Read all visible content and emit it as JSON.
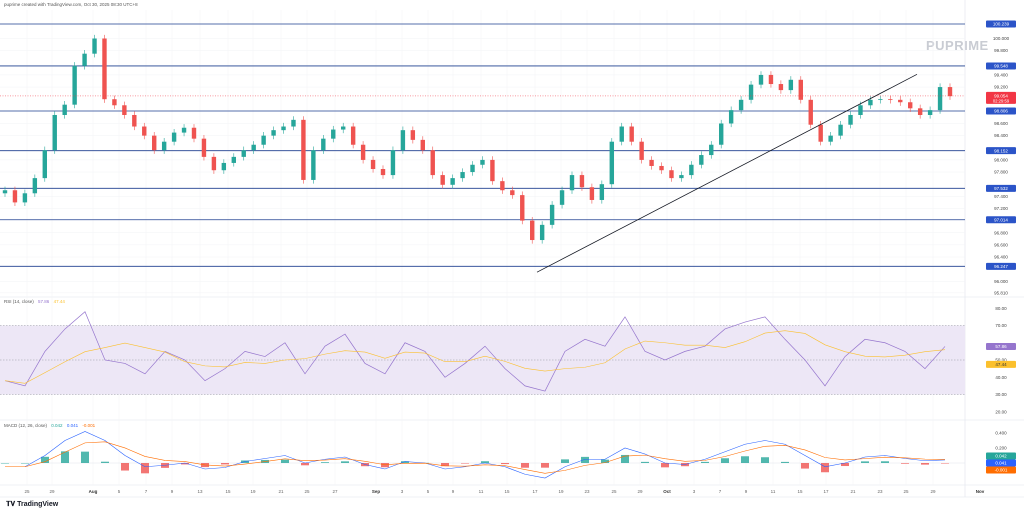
{
  "header": {
    "caption": "puprime created with TradingView.com, Oct 30, 2025 08:30 UTC+8"
  },
  "watermark": "PUPRIME",
  "footer": {
    "brand": "TradingView",
    "brand_icon": "tradingview-logo-icon"
  },
  "colors": {
    "up": "#26a69a",
    "down": "#ef5350",
    "level_line": "#1e3f8f",
    "level_badge": "#2b54c8",
    "rsi": "#9575cd",
    "rsi_ma": "#fbc02d",
    "rsi_band": "#ede7f6",
    "price_badge": "#f23645",
    "macd": "#2962ff",
    "signal": "#ff6d00"
  },
  "chart_data": [
    {
      "type": "candlestick",
      "title": "",
      "price_axis_labels": [
        "100.000",
        "99.800",
        "99.400",
        "99.200",
        "98.600",
        "98.400",
        "98.000",
        "97.800",
        "97.400",
        "97.200",
        "96.800",
        "96.600",
        "96.400",
        "96.000",
        "95.810"
      ],
      "horizontal_levels": [
        "100.239",
        "99.548",
        "98.806",
        "98.152",
        "97.532",
        "97.014",
        "96.247"
      ],
      "last_price": {
        "value": "99.054",
        "countdown": "02:29:59"
      },
      "ylim": [
        95.81,
        100.35
      ],
      "closes": [
        97.5,
        97.3,
        97.45,
        97.7,
        98.16,
        98.74,
        98.91,
        99.55,
        99.75,
        100.0,
        99.0,
        98.9,
        98.74,
        98.55,
        98.4,
        98.16,
        98.3,
        98.45,
        98.53,
        98.35,
        98.05,
        97.83,
        97.95,
        98.05,
        98.16,
        98.25,
        98.4,
        98.49,
        98.55,
        98.66,
        97.67,
        98.16,
        98.35,
        98.5,
        98.55,
        98.25,
        98.0,
        97.85,
        97.75,
        98.16,
        98.49,
        98.33,
        98.16,
        97.75,
        97.59,
        97.7,
        97.8,
        97.92,
        98.0,
        97.65,
        97.5,
        97.42,
        97.0,
        96.68,
        96.93,
        97.26,
        97.5,
        97.75,
        97.55,
        97.34,
        97.6,
        98.3,
        98.55,
        98.3,
        98.0,
        97.9,
        97.83,
        97.7,
        97.75,
        97.92,
        98.08,
        98.25,
        98.6,
        98.82,
        98.99,
        99.24,
        99.4,
        99.25,
        99.15,
        99.32,
        98.99,
        98.58,
        98.3,
        98.4,
        98.58,
        98.74,
        98.9,
        98.99,
        99.0,
        98.99,
        98.95,
        98.85,
        98.74,
        98.82,
        99.2,
        99.05
      ],
      "trendline": {
        "from": {
          "date": "Sep 17",
          "price": 96.15
        },
        "to": {
          "date": "Oct 27",
          "price": 99.41
        }
      },
      "x_tick_labels": [
        "25",
        "29",
        "Aug",
        "5",
        "7",
        "9",
        "13",
        "15",
        "19",
        "21",
        "25",
        "27",
        "Sep",
        "3",
        "5",
        "9",
        "11",
        "15",
        "17",
        "19",
        "23",
        "25",
        "29",
        "Oct",
        "3",
        "7",
        "9",
        "11",
        "15",
        "17",
        "21",
        "23",
        "25",
        "29",
        "Nov"
      ]
    },
    {
      "type": "line",
      "title": "RSI (14, close)",
      "values_shown": {
        "rsi": "57.86",
        "rsi_ma": "47.44"
      },
      "axis_labels": [
        "80.00",
        "70.00",
        "50.00",
        "40.00",
        "30.00",
        "20.00"
      ],
      "band": [
        30,
        70
      ],
      "ylim": [
        15,
        85
      ],
      "rsi": [
        38,
        35,
        55,
        68,
        78,
        50,
        48,
        42,
        55,
        50,
        38,
        45,
        55,
        52,
        60,
        42,
        58,
        65,
        48,
        42,
        60,
        55,
        40,
        48,
        58,
        45,
        35,
        32,
        55,
        62,
        58,
        75,
        55,
        50,
        55,
        58,
        68,
        72,
        75,
        62,
        50,
        35,
        52,
        62,
        60,
        55,
        45,
        57.86
      ]
    },
    {
      "type": "histogram+line",
      "title": "MACD (12, 26, close)",
      "values_shown": {
        "histogram": "0.042",
        "macd": "0.041",
        "signal": "-0.001"
      },
      "axis_labels": [
        "0.400",
        "0.200"
      ],
      "ylim": [
        -0.25,
        0.5
      ],
      "macd": [
        -0.05,
        -0.05,
        0.1,
        0.3,
        0.42,
        0.3,
        0.1,
        -0.05,
        -0.03,
        0.0,
        -0.08,
        -0.06,
        0.02,
        0.06,
        0.1,
        0.0,
        0.05,
        0.08,
        -0.02,
        -0.08,
        0.02,
        0.0,
        -0.08,
        -0.05,
        0.0,
        -0.05,
        -0.15,
        -0.2,
        -0.05,
        0.05,
        0.05,
        0.2,
        0.12,
        0.0,
        -0.02,
        0.05,
        0.15,
        0.25,
        0.3,
        0.25,
        0.1,
        -0.05,
        0.0,
        0.08,
        0.1,
        0.06,
        0.03,
        0.041
      ]
    }
  ]
}
